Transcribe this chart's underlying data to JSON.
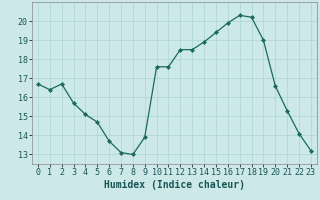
{
  "x": [
    0,
    1,
    2,
    3,
    4,
    5,
    6,
    7,
    8,
    9,
    10,
    11,
    12,
    13,
    14,
    15,
    16,
    17,
    18,
    19,
    20,
    21,
    22,
    23
  ],
  "y": [
    16.7,
    16.4,
    16.7,
    15.7,
    15.1,
    14.7,
    13.7,
    13.1,
    13.0,
    13.9,
    17.6,
    17.6,
    18.5,
    18.5,
    18.9,
    19.4,
    19.9,
    20.3,
    20.2,
    19.0,
    16.6,
    15.3,
    14.1,
    13.2
  ],
  "xlabel": "Humidex (Indice chaleur)",
  "xlim": [
    -0.5,
    23.5
  ],
  "ylim": [
    12.5,
    21.0
  ],
  "yticks": [
    13,
    14,
    15,
    16,
    17,
    18,
    19,
    20
  ],
  "xticks": [
    0,
    1,
    2,
    3,
    4,
    5,
    6,
    7,
    8,
    9,
    10,
    11,
    12,
    13,
    14,
    15,
    16,
    17,
    18,
    19,
    20,
    21,
    22,
    23
  ],
  "line_color": "#1a6b5a",
  "marker_color": "#1a6b5a",
  "bg_color": "#cce8e8",
  "grid_color": "#aad4d4",
  "label_fontsize": 7.0,
  "tick_fontsize": 6.0
}
